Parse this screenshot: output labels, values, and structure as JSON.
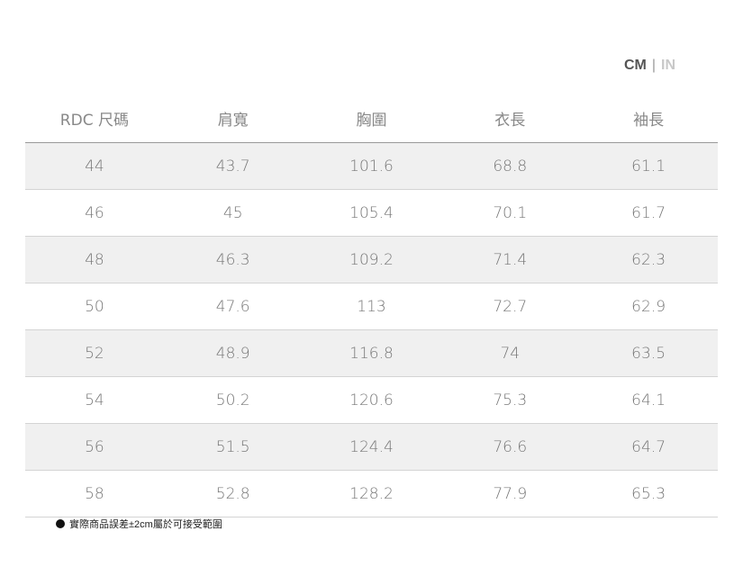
{
  "units": {
    "active": "CM",
    "separator": "|",
    "inactive": "IN"
  },
  "table": {
    "headers": [
      "RDC 尺碼",
      "肩寬",
      "胸圍",
      "衣長",
      "袖長"
    ],
    "rows": [
      [
        "44",
        "43.7",
        "101.6",
        "68.8",
        "61.1"
      ],
      [
        "46",
        "45",
        "105.4",
        "70.1",
        "61.7"
      ],
      [
        "48",
        "46.3",
        "109.2",
        "71.4",
        "62.3"
      ],
      [
        "50",
        "47.6",
        "113",
        "72.7",
        "62.9"
      ],
      [
        "52",
        "48.9",
        "116.8",
        "74",
        "63.5"
      ],
      [
        "54",
        "50.2",
        "120.6",
        "75.3",
        "64.1"
      ],
      [
        "56",
        "51.5",
        "124.4",
        "76.6",
        "64.7"
      ],
      [
        "58",
        "52.8",
        "128.2",
        "77.9",
        "65.3"
      ]
    ]
  },
  "note": "實際商品誤差±2cm屬於可接受範圍"
}
